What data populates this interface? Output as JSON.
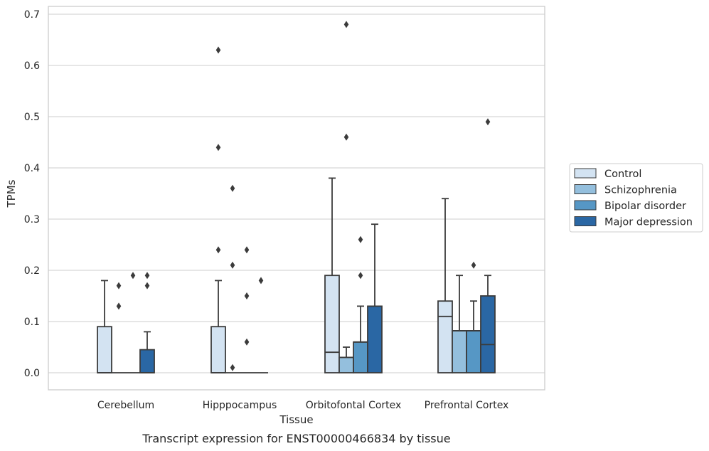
{
  "chart_data": {
    "type": "box",
    "caption": "Transcript expression for ENST00000466834 by tissue",
    "xlabel": "Tissue",
    "ylabel": "TPMs",
    "ylim": [
      -0.033,
      0.715
    ],
    "yticks": [
      "0.0",
      "0.1",
      "0.2",
      "0.3",
      "0.4",
      "0.5",
      "0.6",
      "0.7"
    ],
    "grid": true,
    "legend_position": "right",
    "categories": [
      "Cerebellum",
      "Hipppocampus",
      "Orbitofontal Cortex",
      "Prefrontal Cortex"
    ],
    "series": [
      {
        "name": "Control",
        "color": "#d3e3f2",
        "boxes": [
          {
            "q1": 0,
            "median": 0,
            "q3": 0.09,
            "whisker_low": 0,
            "whisker_high": 0.18,
            "outliers": []
          },
          {
            "q1": 0,
            "median": 0,
            "q3": 0.09,
            "whisker_low": 0,
            "whisker_high": 0.18,
            "outliers": [
              0.63,
              0.44,
              0.24
            ]
          },
          {
            "q1": 0,
            "median": 0.04,
            "q3": 0.19,
            "whisker_low": 0,
            "whisker_high": 0.38,
            "outliers": []
          },
          {
            "q1": 0,
            "median": 0.11,
            "q3": 0.14,
            "whisker_low": 0,
            "whisker_high": 0.34,
            "outliers": []
          }
        ]
      },
      {
        "name": "Schizophrenia",
        "color": "#94bfdd",
        "boxes": [
          {
            "q1": 0,
            "median": 0,
            "q3": 0,
            "whisker_low": 0,
            "whisker_high": 0,
            "outliers": [
              0.17,
              0.13
            ]
          },
          {
            "q1": 0,
            "median": 0,
            "q3": 0,
            "whisker_low": 0,
            "whisker_high": 0,
            "outliers": [
              0.36,
              0.21,
              0.01
            ]
          },
          {
            "q1": 0,
            "median": 0.03,
            "q3": 0.03,
            "whisker_low": 0,
            "whisker_high": 0.05,
            "outliers": [
              0.68,
              0.46
            ]
          },
          {
            "q1": 0,
            "median": 0.082,
            "q3": 0.082,
            "whisker_low": 0,
            "whisker_high": 0.19,
            "outliers": []
          }
        ]
      },
      {
        "name": "Bipolar disorder",
        "color": "#5697c5",
        "boxes": [
          {
            "q1": 0,
            "median": 0,
            "q3": 0,
            "whisker_low": 0,
            "whisker_high": 0,
            "outliers": [
              0.19
            ]
          },
          {
            "q1": 0,
            "median": 0,
            "q3": 0,
            "whisker_low": 0,
            "whisker_high": 0,
            "outliers": [
              0.24,
              0.15,
              0.06
            ]
          },
          {
            "q1": 0,
            "median": 0.06,
            "q3": 0.06,
            "whisker_low": 0,
            "whisker_high": 0.13,
            "outliers": [
              0.26,
              0.19
            ]
          },
          {
            "q1": 0,
            "median": 0.082,
            "q3": 0.082,
            "whisker_low": 0,
            "whisker_high": 0.14,
            "outliers": [
              0.21
            ]
          }
        ]
      },
      {
        "name": "Major depression",
        "color": "#2a67a4",
        "boxes": [
          {
            "q1": 0,
            "median": 0,
            "q3": 0.045,
            "whisker_low": 0,
            "whisker_high": 0.08,
            "outliers": [
              0.19,
              0.17
            ]
          },
          {
            "q1": 0,
            "median": 0,
            "q3": 0,
            "whisker_low": 0,
            "whisker_high": 0,
            "outliers": [
              0.18
            ]
          },
          {
            "q1": 0,
            "median": 0.13,
            "q3": 0.13,
            "whisker_low": 0,
            "whisker_high": 0.29,
            "outliers": []
          },
          {
            "q1": 0,
            "median": 0.055,
            "q3": 0.15,
            "whisker_low": 0,
            "whisker_high": 0.19,
            "outliers": [
              0.49
            ]
          }
        ]
      }
    ]
  }
}
